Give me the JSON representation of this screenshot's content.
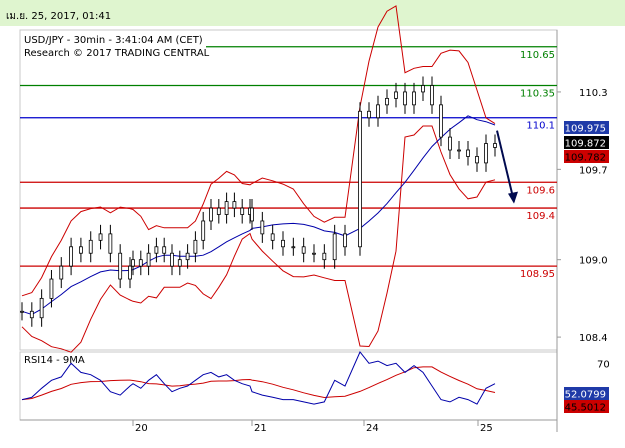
{
  "header": {
    "timestamp": "เม.ย. 25, 2017, 01:41"
  },
  "chart_data": {
    "type": "candlestick",
    "title": "USD/JPY - 30min - 3:41:04 AM (CET)",
    "subtitle": "Research © 2017 TRADING CENTRAL",
    "price_axis": {
      "ticks": [
        "110.3",
        "109.7",
        "109.0",
        "108.4"
      ],
      "ylim": [
        108.3,
        110.78
      ]
    },
    "x_axis": {
      "ticks": [
        "20",
        "21",
        "24",
        "25"
      ]
    },
    "levels": [
      {
        "label": "110.65",
        "value": 110.65,
        "color": "#008000"
      },
      {
        "label": "110.35",
        "value": 110.35,
        "color": "#008000"
      },
      {
        "label": "110.1",
        "value": 110.1,
        "color": "#0000cc"
      },
      {
        "label": "109.6",
        "value": 109.6,
        "color": "#cc0000"
      },
      {
        "label": "109.4",
        "value": 109.4,
        "color": "#cc0000"
      },
      {
        "label": "108.95",
        "value": 108.95,
        "color": "#cc0000"
      }
    ],
    "price_badges": [
      {
        "label": "109.975",
        "value": 109.975,
        "bg": "#1f3aa8",
        "fg": "#ffffff"
      },
      {
        "label": "109.872",
        "value": 109.872,
        "bg": "#000000",
        "fg": "#ffffff"
      },
      {
        "label": "109.782",
        "value": 109.782,
        "bg": "#cc0000",
        "fg": "#000000"
      }
    ],
    "close_series_approx": [
      108.6,
      108.55,
      108.7,
      108.85,
      108.95,
      109.1,
      109.05,
      109.15,
      109.2,
      109.05,
      108.85,
      108.95,
      109.0,
      108.95,
      109.05,
      109.1,
      109.05,
      108.95,
      109.0,
      109.05,
      109.15,
      109.3,
      109.4,
      109.35,
      109.45,
      109.4,
      109.35,
      109.4,
      109.3,
      109.2,
      109.15,
      109.1,
      109.1,
      109.05,
      109.05,
      109.0,
      109.2,
      109.1,
      110.15,
      110.1,
      110.2,
      110.25,
      110.3,
      110.2,
      110.3,
      110.35,
      110.2,
      109.95,
      109.85,
      109.85,
      109.8,
      109.75,
      109.9,
      109.87
    ],
    "rsi": {
      "label": "RSI14 - 9MA",
      "ylim": [
        20,
        80
      ],
      "ticks": [
        "70",
        "30"
      ],
      "badges": [
        {
          "label": "52.0799",
          "value": 52.08,
          "bg": "#1f3aa8",
          "fg": "#ffffff"
        },
        {
          "label": "45.5012",
          "value": 45.5,
          "bg": "#cc0000",
          "fg": "#000000"
        }
      ],
      "values_approx": [
        38,
        40,
        48,
        55,
        58,
        70,
        62,
        60,
        55,
        45,
        42,
        50,
        52,
        48,
        55,
        60,
        52,
        45,
        48,
        50,
        55,
        60,
        62,
        58,
        60,
        55,
        52,
        50,
        45,
        42,
        40,
        38,
        38,
        36,
        34,
        36,
        55,
        50,
        80,
        70,
        72,
        68,
        70,
        62,
        68,
        62,
        50,
        38,
        36,
        40,
        38,
        34,
        48,
        52
      ]
    }
  }
}
